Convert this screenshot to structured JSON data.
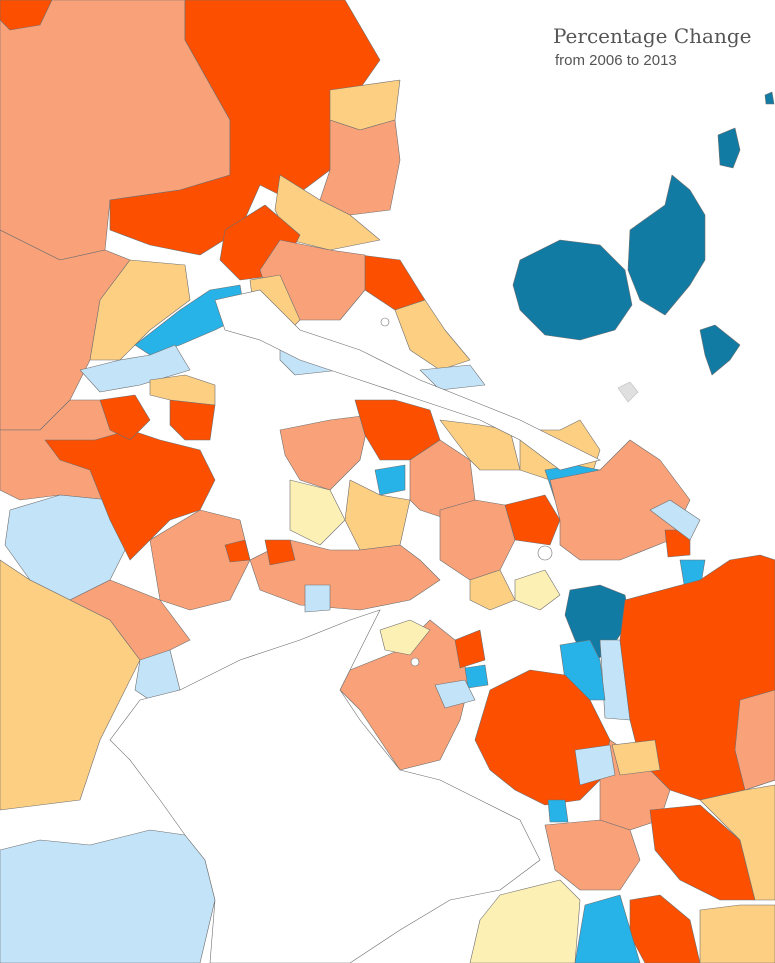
{
  "title": "Percentage Change",
  "subtitle": "from 2006 to 2013",
  "palette": {
    "strong_increase": "#fd4f00",
    "increase": "#f9a27a",
    "slight_increase": "#fccf83",
    "little_change": "#fdf0b5",
    "slight_decrease": "#c3e3f8",
    "decrease": "#28b3e8",
    "strong_decrease": "#127ba4",
    "boundary": "#6e6e6e",
    "water": "#ffffff"
  }
}
